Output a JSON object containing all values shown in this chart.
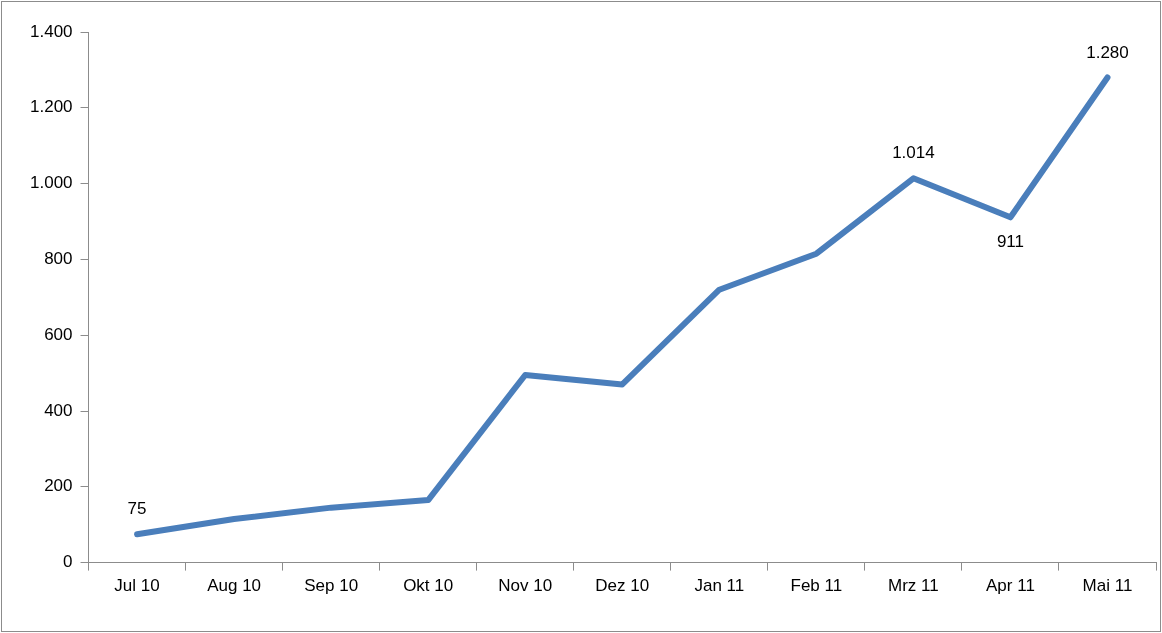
{
  "chart_data": {
    "type": "line",
    "categories": [
      "Jul 10",
      "Aug 10",
      "Sep 10",
      "Okt 10",
      "Nov 10",
      "Dez 10",
      "Jan 11",
      "Feb 11",
      "Mrz 11",
      "Apr 11",
      "Mai 11"
    ],
    "series": [
      {
        "color": "#4a7ebb",
        "values": [
          75,
          115,
          145,
          165,
          495,
          470,
          720,
          815,
          1014,
          911,
          1280
        ],
        "value_labels": [
          "75",
          null,
          null,
          null,
          null,
          null,
          null,
          null,
          "1.014",
          "911",
          "1.280"
        ]
      }
    ],
    "ylim": [
      0,
      1400
    ],
    "yticks": [
      {
        "value": 0,
        "label": "0"
      },
      {
        "value": 200,
        "label": "200"
      },
      {
        "value": 400,
        "label": "400"
      },
      {
        "value": 600,
        "label": "600"
      },
      {
        "value": 800,
        "label": "800"
      },
      {
        "value": 1000,
        "label": "1.000"
      },
      {
        "value": 1200,
        "label": "1.200"
      },
      {
        "value": 1400,
        "label": "1.400"
      }
    ],
    "grid": false,
    "legend": false,
    "marker": "none",
    "line_style": "solid"
  }
}
